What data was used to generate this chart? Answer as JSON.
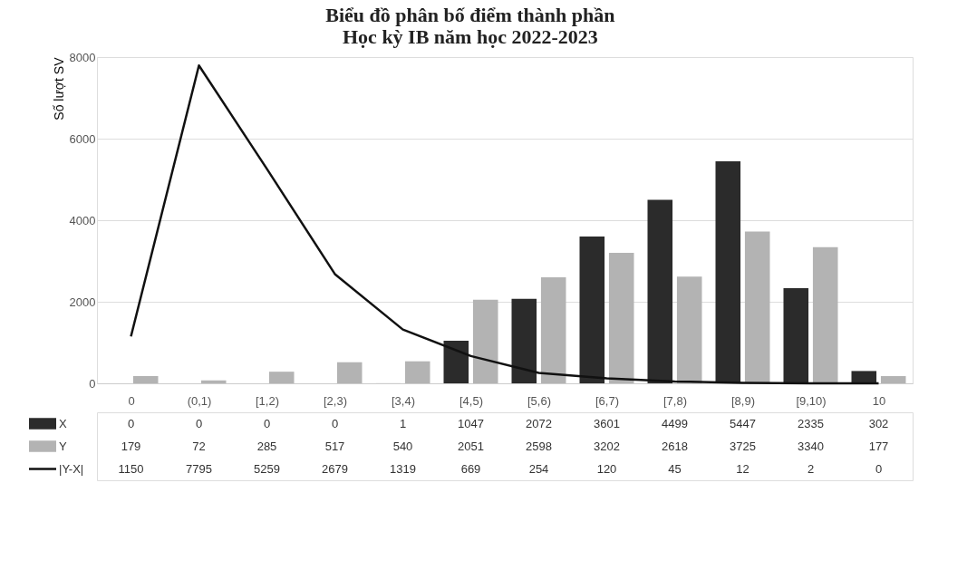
{
  "chart_data": {
    "type": "bar",
    "title": "Biểu đồ phân bố điểm thành phần\nHọc kỳ IB năm học 2022-2023",
    "ylabel": "Số lượt SV",
    "categories": [
      "0",
      "(0,1)",
      "[1,2)",
      "[2,3)",
      "[3,4)",
      "[4,5)",
      "[5,6)",
      "[6,7)",
      "[7,8)",
      "[8,9)",
      "[9,10)",
      "10"
    ],
    "series": [
      {
        "name": "X",
        "color": "#2b2b2b",
        "values": [
          0,
          0,
          0,
          0,
          1,
          1047,
          2072,
          3601,
          4499,
          5447,
          2335,
          302
        ]
      },
      {
        "name": "Y",
        "color": "#b3b3b3",
        "values": [
          179,
          72,
          285,
          517,
          540,
          2051,
          2598,
          3202,
          2618,
          3725,
          3340,
          177
        ]
      },
      {
        "name": "|Y-X|",
        "type": "line",
        "color": "#111111",
        "values": [
          1150,
          7795,
          5259,
          2679,
          1319,
          669,
          254,
          120,
          45,
          12,
          2,
          0
        ]
      }
    ],
    "ylim": [
      0,
      8000
    ],
    "yticks": [
      0,
      2000,
      4000,
      6000,
      8000
    ],
    "grid": "y",
    "legend": "bottom",
    "data_labels": true,
    "marker": "none",
    "line_style": "solid"
  }
}
